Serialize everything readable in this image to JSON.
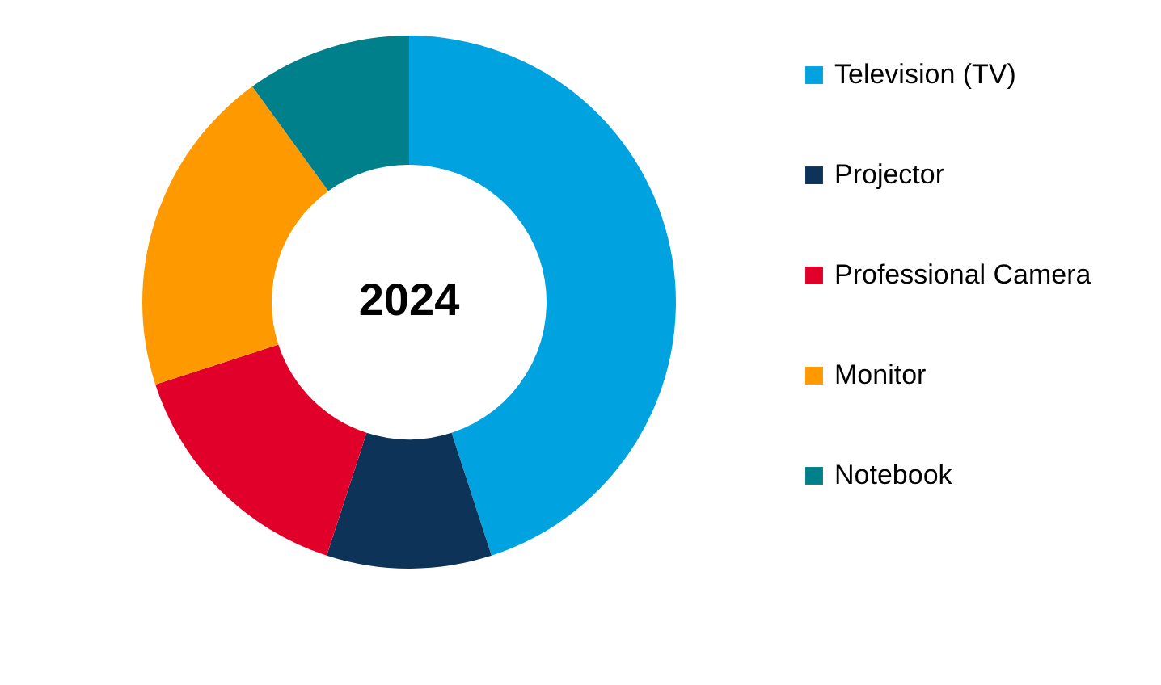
{
  "chart_data": {
    "type": "donut",
    "categories": [
      "Television (TV)",
      "Projector",
      "Professional Camera",
      "Monitor",
      "Notebook"
    ],
    "values": [
      45,
      10,
      15,
      20,
      10
    ],
    "colors": [
      "#00a3e0",
      "#0d3358",
      "#e0002a",
      "#ff9900",
      "#00808a"
    ],
    "legend": "right",
    "annotations": [
      "2024"
    ]
  }
}
